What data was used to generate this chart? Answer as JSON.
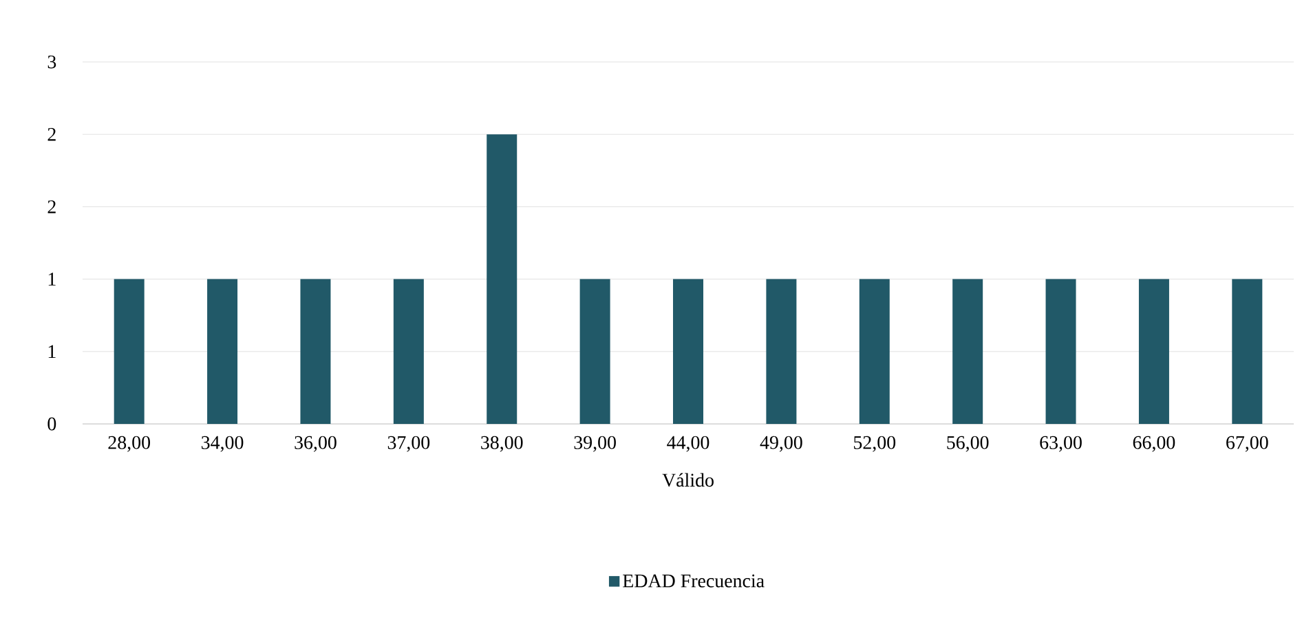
{
  "chart_data": {
    "type": "bar",
    "categories": [
      "28,00",
      "34,00",
      "36,00",
      "37,00",
      "38,00",
      "39,00",
      "44,00",
      "49,00",
      "52,00",
      "56,00",
      "63,00",
      "66,00",
      "67,00"
    ],
    "xlabel": "Válido",
    "series": [
      {
        "name": "EDAD Frecuencia",
        "color": "#215968",
        "values": [
          1,
          1,
          1,
          1,
          2,
          1,
          1,
          1,
          1,
          1,
          1,
          1,
          1
        ]
      }
    ],
    "ylim": [
      0,
      2.5
    ],
    "yticks": [
      {
        "value": 0,
        "label": "0"
      },
      {
        "value": 0.5,
        "label": "1"
      },
      {
        "value": 1,
        "label": "1"
      },
      {
        "value": 1.5,
        "label": "2"
      },
      {
        "value": 2,
        "label": "2"
      },
      {
        "value": 2.5,
        "label": "3"
      }
    ],
    "grid": "y",
    "legend": "bottom"
  }
}
